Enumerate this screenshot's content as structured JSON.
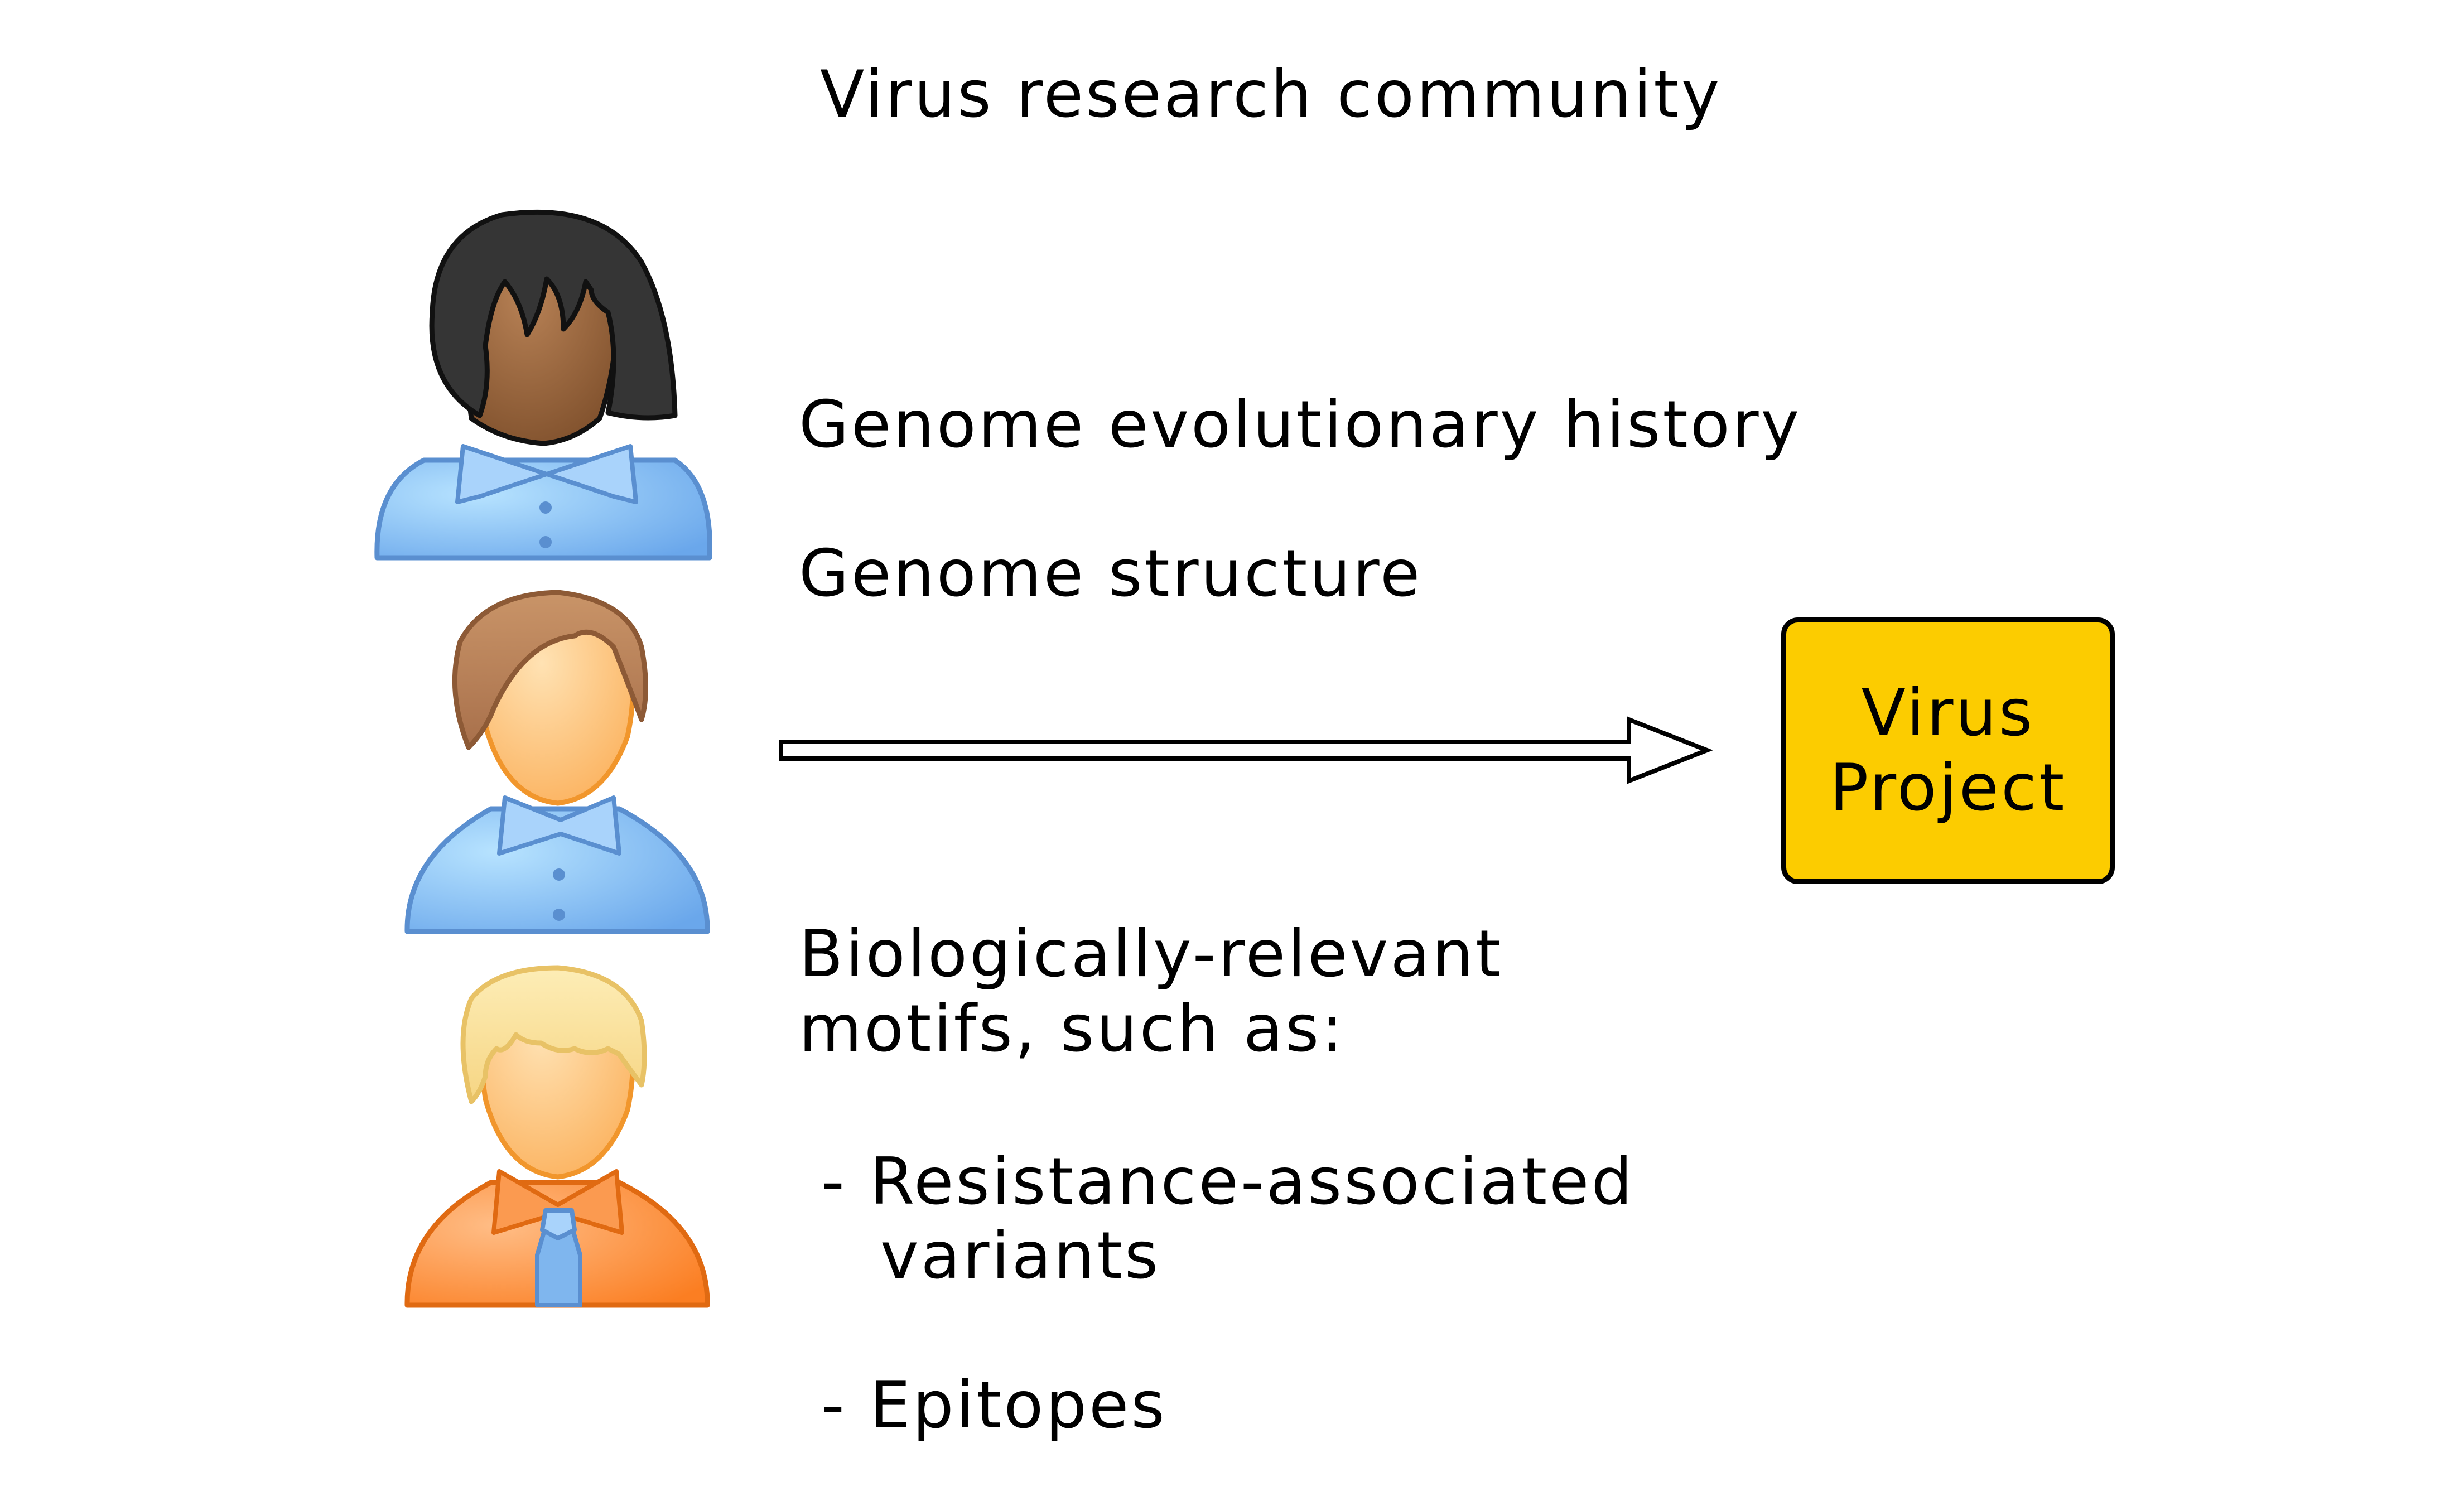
{
  "title": "Virus research community",
  "contributions": {
    "item_1": "Genome evolutionary history",
    "item_2": "Genome structure",
    "item_3_line_1": "Biologically-relevant",
    "item_3_line_2": "motifs, such as:",
    "sub_item_1_line_1": "- Resistance-associated",
    "sub_item_1_line_2": "variants",
    "sub_item_2": "- Epitopes"
  },
  "target": {
    "line_1": "Virus",
    "line_2": "Project",
    "color": "#fccc00"
  },
  "people": [
    {
      "icon": "woman-dark-hair-user-icon",
      "shirt_color": "#7fb6ee"
    },
    {
      "icon": "man-brown-hair-user-icon",
      "shirt_color": "#7fb6ee"
    },
    {
      "icon": "man-blond-hair-tie-user-icon",
      "shirt_color": "#fb8f3d"
    }
  ]
}
